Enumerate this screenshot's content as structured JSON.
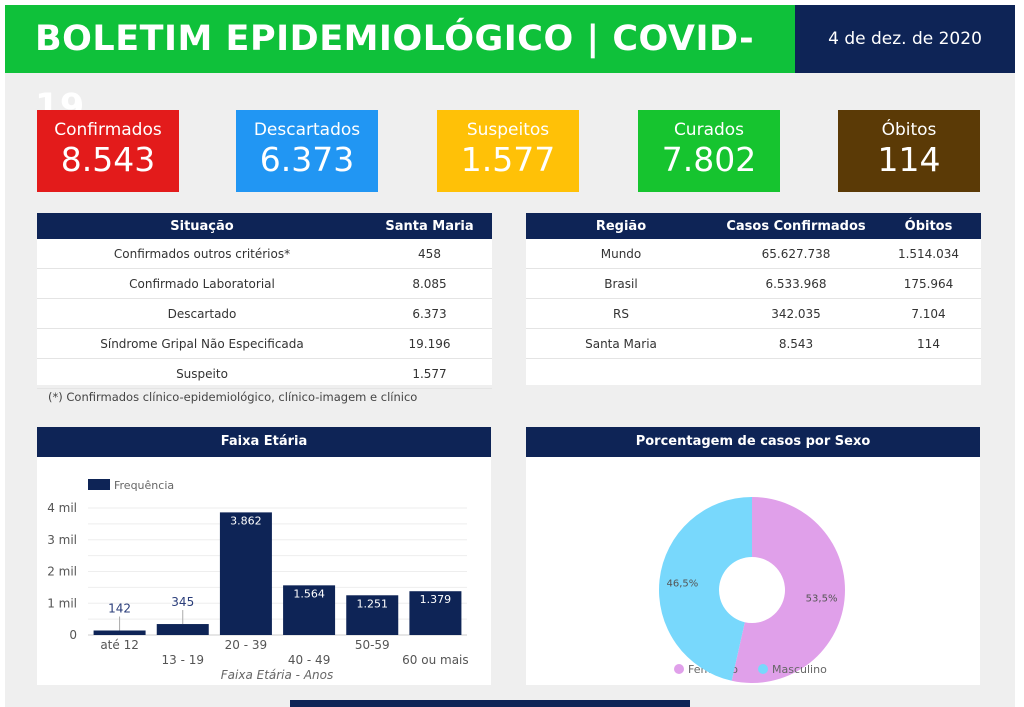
{
  "header": {
    "title": "BOLETIM EPIDEMIOLÓGICO | COVID-19",
    "date": "4 de dez. de 2020"
  },
  "kpis": [
    {
      "label": "Confirmados",
      "value": "8.543",
      "color": "#e31b1b"
    },
    {
      "label": "Descartados",
      "value": "6.373",
      "color": "#2196f3"
    },
    {
      "label": "Suspeitos",
      "value": "1.577",
      "color": "#ffc107"
    },
    {
      "label": "Curados",
      "value": "7.802",
      "color": "#16c42f"
    },
    {
      "label": "Óbitos",
      "value": "114",
      "color": "#5b3a06"
    }
  ],
  "situacao": {
    "headers": [
      "Situação",
      "Santa Maria"
    ],
    "rows": [
      [
        "Confirmados outros critérios*",
        "458"
      ],
      [
        "Confirmado Laboratorial",
        "8.085"
      ],
      [
        "Descartado",
        "6.373"
      ],
      [
        "Síndrome Gripal Não Especificada",
        "19.196"
      ],
      [
        "Suspeito",
        "1.577"
      ]
    ],
    "note": "(*) Confirmados clínico-epidemiológico, clínico-imagem e clínico"
  },
  "regiao": {
    "headers": [
      "Região",
      "Casos Confirmados",
      "Óbitos"
    ],
    "rows": [
      [
        "Mundo",
        "65.627.738",
        "1.514.034"
      ],
      [
        "Brasil",
        "6.533.968",
        "175.964"
      ],
      [
        "RS",
        "342.035",
        "7.104"
      ],
      [
        "Santa Maria",
        "8.543",
        "114"
      ]
    ]
  },
  "chart_data": [
    {
      "type": "bar",
      "title": "Faixa Etária",
      "xlabel": "Faixa Etária - Anos",
      "ylabel": "",
      "legend": "top-left",
      "series": [
        {
          "name": "Frequência",
          "color": "#0e2456",
          "values": [
            142,
            345,
            3862,
            1564,
            1251,
            1379
          ],
          "labels": [
            "142",
            "345",
            "3.862",
            "1.564",
            "1.251",
            "1.379"
          ]
        }
      ],
      "categories": [
        "até 12",
        "13 - 19",
        "20 - 39",
        "40 - 49",
        "50-59",
        "60 ou mais"
      ],
      "yticks": [
        {
          "v": 0,
          "l": "0"
        },
        {
          "v": 1000,
          "l": "1 mil"
        },
        {
          "v": 2000,
          "l": "2 mil"
        },
        {
          "v": 3000,
          "l": "3 mil"
        },
        {
          "v": 4000,
          "l": "4 mil"
        }
      ],
      "ylim": [
        0,
        4000
      ],
      "grid": true
    },
    {
      "type": "pie",
      "title": "Porcentagem de casos por Sexo",
      "donut": true,
      "legend": "bottom",
      "slices": [
        {
          "name": "Feminino",
          "value": 53.5,
          "label": "53,5%",
          "color": "#e0a0ea"
        },
        {
          "name": "Masculino",
          "value": 46.5,
          "label": "46,5%",
          "color": "#78d8fc"
        }
      ]
    }
  ]
}
